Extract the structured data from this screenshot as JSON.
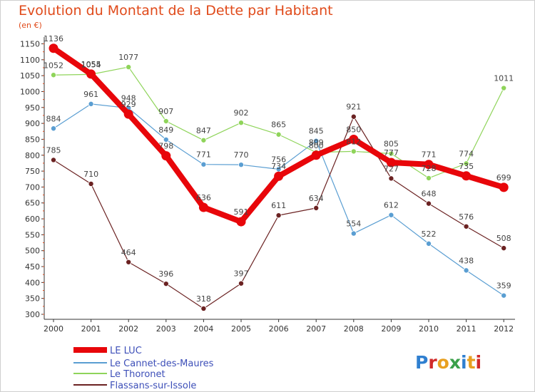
{
  "title": "Evolution du Montant de la Dette par Habitant",
  "unit_note": "(en €)",
  "logo_text": "Proxiti",
  "colors": {
    "title": "#e04a1a",
    "axis": "#333333",
    "grid": "#dddddd"
  },
  "chart_data": {
    "type": "line",
    "title": "Evolution du Montant de la Dette par Habitant",
    "ylabel": "(en €)",
    "xlabel": "",
    "ylim": [
      300,
      1150
    ],
    "yticks": [
      300,
      350,
      400,
      450,
      500,
      550,
      600,
      650,
      700,
      750,
      800,
      850,
      900,
      950,
      1000,
      1050,
      1100,
      1150
    ],
    "grid": false,
    "legend_position": "bottom-left",
    "categories": [
      "2000",
      "2001",
      "2002",
      "2003",
      "2004",
      "2005",
      "2006",
      "2007",
      "2008",
      "2009",
      "2010",
      "2011",
      "2012"
    ],
    "series": [
      {
        "name": "LE LUC",
        "color": "#e8060a",
        "values": [
          1136,
          1055,
          929,
          798,
          636,
          591,
          734,
          800,
          850,
          777,
          771,
          735,
          699
        ],
        "labels": [
          "1136",
          "1055",
          "929",
          "798",
          "636",
          "591",
          "734",
          "800",
          "850",
          "777",
          "771",
          "735",
          "699"
        ]
      },
      {
        "name": "Le Cannet-des-Maures",
        "color": "#5a9ed2",
        "values": [
          884,
          961,
          948,
          849,
          771,
          770,
          756,
          845,
          554,
          612,
          522,
          438,
          359
        ],
        "labels": [
          "884",
          "961",
          "948",
          "849",
          "771",
          "770",
          "756",
          "845",
          "554",
          "612",
          "522",
          "438",
          "359"
        ]
      },
      {
        "name": "Le Thoronet",
        "color": "#8fd45a",
        "values": [
          1052,
          1054,
          1077,
          907,
          847,
          902,
          865,
          809,
          812,
          805,
          728,
          774,
          1011
        ],
        "labels": [
          "1052",
          "1054",
          "1077",
          "907",
          "847",
          "902",
          "865",
          "809",
          "812",
          "805",
          "728",
          "774",
          "1011"
        ]
      },
      {
        "name": "Flassans-sur-Issole",
        "color": "#6b2222",
        "values": [
          785,
          710,
          464,
          396,
          318,
          397,
          611,
          634,
          921,
          727,
          648,
          576,
          508
        ],
        "labels": [
          "785",
          "710",
          "464",
          "396",
          "318",
          "397",
          "611",
          "634",
          "921",
          "727",
          "648",
          "576",
          "508"
        ]
      }
    ]
  }
}
